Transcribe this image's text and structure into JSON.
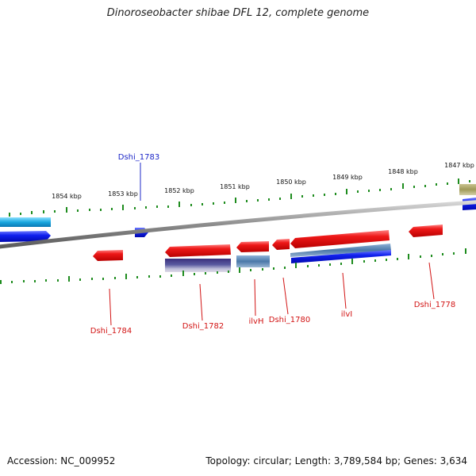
{
  "title": "Dinoroseobacter shibae DFL 12, complete genome",
  "footer": {
    "accession": "Accession: NC_009952",
    "stats": "Topology: circular; Length: 3,789,584 bp; Genes: 3,634"
  },
  "colors": {
    "forward_gene": "#1428f0",
    "forward_light": "#19b4e6",
    "reverse_gene": "#e81414",
    "scale_tick": "#1e8c1e",
    "backbone": "#8c8c8c",
    "label_forward": "#1e28c8",
    "label_reverse": "#d21414"
  },
  "scale_labels": [
    "1854 kbp",
    "1853 kbp",
    "1852 kbp",
    "1851 kbp",
    "1850 kbp",
    "1849 kbp",
    "1848 kbp",
    "1847 kbp"
  ],
  "gene_labels": {
    "forward": [
      "Dshi_1783"
    ],
    "reverse": [
      "Dshi_1784",
      "Dshi_1782",
      "ilvH",
      "Dshi_1780",
      "ilvI",
      "Dshi_1778"
    ]
  }
}
